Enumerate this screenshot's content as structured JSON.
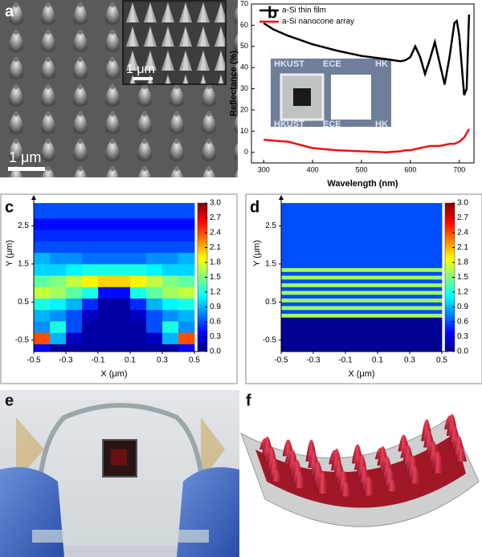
{
  "panel_a": {
    "label": "a",
    "scale_bar": "1 μm",
    "inset_scale_bar": "1 μm"
  },
  "panel_e": {
    "label": "e"
  },
  "panel_f": {
    "label": "f"
  },
  "chart_data": [
    {
      "type": "line",
      "label": "b",
      "xlabel": "Wavelength (nm)",
      "ylabel": "Reflectance (%)",
      "x": [
        300,
        320,
        350,
        400,
        450,
        500,
        550,
        580,
        590,
        600,
        610,
        620,
        630,
        640,
        650,
        660,
        670,
        680,
        690,
        695,
        700,
        710,
        715,
        720
      ],
      "series": [
        {
          "name": "a-Si thin film",
          "color": "#000000",
          "values": [
            61,
            58,
            55,
            51,
            48,
            45.5,
            44,
            43,
            43.5,
            45,
            50,
            45,
            37,
            44,
            52,
            42,
            32,
            45,
            61,
            62,
            55,
            27,
            30,
            65
          ]
        },
        {
          "name": "a-Si nanocone array",
          "color": "#ee1111",
          "values": [
            6,
            5.5,
            5,
            2,
            1,
            0.5,
            0,
            0.5,
            1,
            1,
            1.5,
            2,
            2.5,
            3,
            3,
            3,
            3.5,
            4,
            4,
            4.5,
            5,
            7,
            9,
            11
          ]
        }
      ],
      "xlim": [
        275,
        730
      ],
      "ylim": [
        -5,
        70
      ],
      "xticks": [
        300,
        400,
        500,
        600,
        700
      ],
      "yticks": [
        0,
        10,
        20,
        30,
        40,
        50,
        60,
        70
      ],
      "legend": "upper left",
      "inset_text": [
        "HKUST",
        "ECE",
        "HK",
        "HKUST",
        "ECE",
        "HK"
      ]
    },
    {
      "type": "heatmap",
      "label": "c",
      "xlabel": "X (μm)",
      "ylabel": "Y (μm)",
      "colormap": "jet",
      "x": [
        -0.5,
        -0.4,
        -0.3,
        -0.2,
        -0.1,
        0,
        0.1,
        0.2,
        0.3,
        0.4,
        0.5
      ],
      "y": [
        -0.8,
        -0.6,
        -0.3,
        0,
        0.3,
        0.6,
        0.9,
        1.2,
        1.5,
        1.8,
        2.1,
        2.4,
        2.7,
        3.1
      ],
      "z": [
        [
          0.4,
          0.1,
          0.1,
          0.1,
          0.1,
          0.1,
          0.1,
          0.1,
          0.1,
          0.4
        ],
        [
          2.4,
          0.9,
          0.2,
          0.1,
          0.1,
          0.1,
          0.1,
          0.2,
          0.9,
          2.4
        ],
        [
          0.8,
          1.2,
          0.6,
          0.1,
          0.1,
          0.1,
          0.1,
          0.6,
          1.2,
          0.8
        ],
        [
          0.9,
          0.8,
          0.6,
          0.2,
          0.1,
          0.1,
          0.2,
          0.6,
          0.8,
          0.9
        ],
        [
          1.2,
          1.1,
          0.9,
          0.5,
          0.1,
          0.1,
          0.5,
          0.9,
          1.1,
          1.2
        ],
        [
          1.7,
          1.6,
          1.4,
          1.2,
          0.4,
          0.4,
          1.2,
          1.4,
          1.6,
          1.7
        ],
        [
          1.4,
          1.5,
          1.7,
          1.9,
          2.0,
          2.0,
          1.9,
          1.7,
          1.5,
          1.4
        ],
        [
          1.0,
          1.0,
          1.1,
          1.2,
          1.2,
          1.2,
          1.2,
          1.1,
          1.0,
          1.0
        ],
        [
          0.9,
          0.8,
          0.8,
          0.7,
          0.7,
          0.7,
          0.7,
          0.8,
          0.8,
          0.9
        ],
        [
          0.6,
          0.6,
          0.6,
          0.6,
          0.6,
          0.6,
          0.6,
          0.6,
          0.6,
          0.6
        ],
        [
          0.5,
          0.5,
          0.5,
          0.5,
          0.5,
          0.5,
          0.5,
          0.5,
          0.5,
          0.5
        ],
        [
          0.4,
          0.4,
          0.4,
          0.4,
          0.4,
          0.4,
          0.4,
          0.4,
          0.4,
          0.4
        ],
        [
          0.6,
          0.6,
          0.6,
          0.6,
          0.6,
          0.6,
          0.6,
          0.6,
          0.6,
          0.6
        ]
      ],
      "xlim": [
        -0.5,
        0.5
      ],
      "ylim": [
        -0.8,
        3.1
      ],
      "xticks": [
        -0.5,
        -0.3,
        -0.1,
        0.1,
        0.3,
        0.5
      ],
      "yticks": [
        -0.5,
        0.5,
        1.5,
        2.5
      ],
      "clim": [
        0,
        3
      ],
      "cticks": [
        {
          "value": 0,
          "label": "0.0"
        },
        {
          "value": 0.3,
          "label": "0.3"
        },
        {
          "value": 0.6,
          "label": "0.6"
        },
        {
          "value": 0.9,
          "label": "0.9"
        },
        {
          "value": 1.2,
          "label": "1.2"
        },
        {
          "value": 1.5,
          "label": "1.5"
        },
        {
          "value": 1.8,
          "label": "1.8"
        },
        {
          "value": 2.1,
          "label": "2.1"
        },
        {
          "value": 2.4,
          "label": "2.4"
        },
        {
          "value": 2.7,
          "label": "2.7"
        },
        {
          "value": 3,
          "label": "3.0"
        }
      ]
    },
    {
      "type": "heatmap",
      "label": "d",
      "xlabel": "X (μm)",
      "ylabel": "Y (μm)",
      "colormap": "jet",
      "x": [
        -0.5,
        0.5
      ],
      "y": [
        -0.8,
        0.1,
        0.2,
        0.3,
        0.4,
        0.5,
        0.6,
        0.7,
        0.8,
        0.9,
        1.0,
        1.1,
        1.2,
        1.3,
        1.4,
        1.5,
        3.1
      ],
      "z": [
        [
          0.05
        ],
        [
          1.6
        ],
        [
          0.6
        ],
        [
          1.6
        ],
        [
          0.6
        ],
        [
          1.6
        ],
        [
          0.6
        ],
        [
          1.6
        ],
        [
          0.6
        ],
        [
          1.6
        ],
        [
          0.6
        ],
        [
          1.6
        ],
        [
          0.6
        ],
        [
          1.6
        ],
        [
          0.6
        ],
        [
          0.6
        ]
      ],
      "xlim": [
        -0.5,
        0.5
      ],
      "ylim": [
        -0.8,
        3.1
      ],
      "xticks": [
        -0.5,
        -0.3,
        -0.1,
        0.1,
        0.3,
        0.5
      ],
      "yticks": [
        -0.5,
        0.5,
        1.5,
        2.5
      ],
      "clim": [
        0,
        3
      ],
      "cticks": [
        {
          "value": 0,
          "label": "0.0"
        },
        {
          "value": 0.3,
          "label": "0.3"
        },
        {
          "value": 0.6,
          "label": "0.6"
        },
        {
          "value": 0.9,
          "label": "0.9"
        },
        {
          "value": 1.2,
          "label": "1.2"
        },
        {
          "value": 1.5,
          "label": "1.5"
        },
        {
          "value": 1.8,
          "label": "1.8"
        },
        {
          "value": 2.1,
          "label": "2.1"
        },
        {
          "value": 2.4,
          "label": "2.4"
        },
        {
          "value": 2.7,
          "label": "2.7"
        },
        {
          "value": 3,
          "label": "3.0"
        }
      ]
    }
  ]
}
